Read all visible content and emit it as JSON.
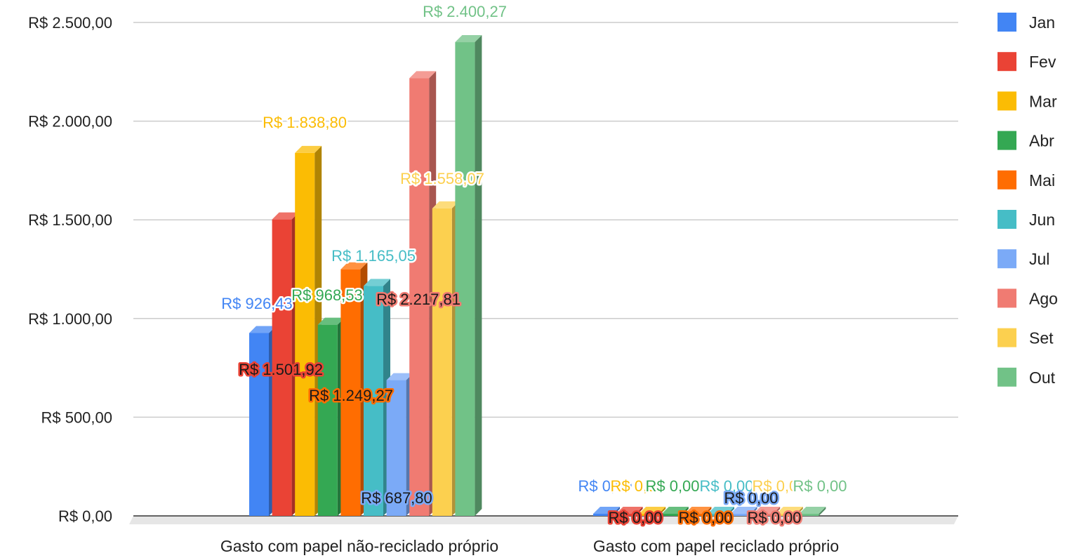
{
  "chart_data": {
    "type": "bar",
    "categories": [
      "Gasto com papel não-reciclado próprio",
      "Gasto com papel reciclado próprio"
    ],
    "series": [
      {
        "name": "Jan",
        "color": "#4285f4",
        "values": [
          926.43,
          0.0
        ],
        "labels": [
          "R$ 926,43",
          "R$ 0,00"
        ]
      },
      {
        "name": "Fev",
        "color": "#ea4335",
        "values": [
          1501.92,
          0.0
        ],
        "labels": [
          "R$ 1.501,92",
          "R$ 0,00"
        ]
      },
      {
        "name": "Mar",
        "color": "#fbbc04",
        "values": [
          1838.8,
          0.0
        ],
        "labels": [
          "R$ 1.838,80",
          "R$ 0,00"
        ]
      },
      {
        "name": "Abr",
        "color": "#34a853",
        "values": [
          968.53,
          0.0
        ],
        "labels": [
          "R$ 968,53",
          "R$ 0,00"
        ]
      },
      {
        "name": "Mai",
        "color": "#ff6d01",
        "values": [
          1249.27,
          0.0
        ],
        "labels": [
          "R$ 1.249,27",
          "R$ 0,00"
        ]
      },
      {
        "name": "Jun",
        "color": "#46bdc6",
        "values": [
          1165.05,
          0.0
        ],
        "labels": [
          "R$ 1.165,05",
          "R$ 0,00"
        ]
      },
      {
        "name": "Jul",
        "color": "#7baaf7",
        "values": [
          687.8,
          0.0
        ],
        "labels": [
          "R$ 687,80",
          "R$ 0,00"
        ]
      },
      {
        "name": "Ago",
        "color": "#f07b72",
        "values": [
          2217.81,
          0.0
        ],
        "labels": [
          "R$ 2.217,81",
          "R$ 0,00"
        ]
      },
      {
        "name": "Set",
        "color": "#fcd04f",
        "values": [
          1558.07,
          0.0
        ],
        "labels": [
          "R$ 1.558,07",
          "R$ 0,00"
        ]
      },
      {
        "name": "Out",
        "color": "#71c287",
        "values": [
          2400.27,
          0.0
        ],
        "labels": [
          "R$ 2.400,27",
          "R$ 0,00"
        ]
      }
    ],
    "y_ticks": [
      "R$ 0,00",
      "R$ 500,00",
      "R$ 1.000,00",
      "R$ 1.500,00",
      "R$ 2.000,00",
      "R$ 2.500,00"
    ],
    "ylim": [
      0,
      2500
    ],
    "title": "",
    "xlabel": "",
    "ylabel": "",
    "grid": true,
    "legend": "right",
    "style": "3d"
  }
}
